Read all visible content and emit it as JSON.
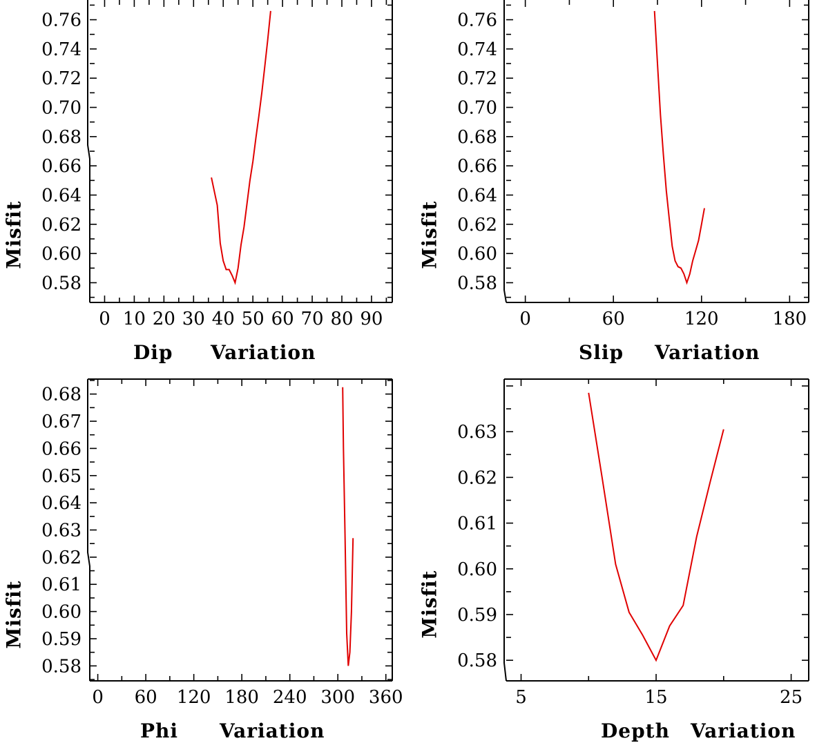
{
  "chart_data": [
    {
      "type": "line",
      "title": "",
      "xlabel_parts": [
        "Dip",
        "Variation"
      ],
      "ylabel": "Misfit",
      "xlim": [
        -5,
        97
      ],
      "ylim": [
        0.5665,
        0.7735
      ],
      "xticks": [
        0,
        10,
        20,
        30,
        40,
        50,
        60,
        70,
        80,
        90
      ],
      "xtick_labels": [
        "0",
        "10",
        "20",
        "30",
        "40",
        "50",
        "60",
        "70",
        "80",
        "90"
      ],
      "yticks": [
        0.58,
        0.6,
        0.62,
        0.64,
        0.66,
        0.68,
        0.7,
        0.72,
        0.74,
        0.76
      ],
      "ytick_labels": [
        "0.58",
        "0.60",
        "0.62",
        "0.64",
        "0.66",
        "0.68",
        "0.70",
        "0.72",
        "0.74",
        "0.76"
      ],
      "series": [
        {
          "name": "misfit",
          "color": "#e00000",
          "x": [
            36,
            38,
            39,
            40,
            41,
            42,
            43,
            44,
            45,
            46,
            47,
            48,
            49,
            50,
            51,
            52,
            53,
            54,
            55,
            56
          ],
          "y": [
            0.652,
            0.633,
            0.607,
            0.595,
            0.589,
            0.589,
            0.585,
            0.58,
            0.59,
            0.606,
            0.618,
            0.634,
            0.65,
            0.663,
            0.679,
            0.694,
            0.71,
            0.728,
            0.746,
            0.766
          ]
        }
      ]
    },
    {
      "type": "line",
      "title": "",
      "xlabel_parts": [
        "Slip",
        "Variation"
      ],
      "ylabel": "Misfit",
      "xlim": [
        -13,
        193
      ],
      "ylim": [
        0.5665,
        0.7735
      ],
      "xticks": [
        0,
        60,
        120,
        180
      ],
      "xtick_labels": [
        "0",
        "60",
        "120",
        "180"
      ],
      "yticks": [
        0.58,
        0.6,
        0.62,
        0.64,
        0.66,
        0.68,
        0.7,
        0.72,
        0.74,
        0.76
      ],
      "ytick_labels": [
        "0.58",
        "0.60",
        "0.62",
        "0.64",
        "0.66",
        "0.68",
        "0.70",
        "0.72",
        "0.74",
        "0.76"
      ],
      "series": [
        {
          "name": "misfit",
          "color": "#e00000",
          "x": [
            88,
            90,
            92,
            94,
            96,
            98,
            100,
            102,
            104,
            106,
            108,
            110,
            112,
            114,
            116,
            118,
            120,
            122
          ],
          "y": [
            0.766,
            0.73,
            0.695,
            0.668,
            0.643,
            0.624,
            0.605,
            0.595,
            0.591,
            0.59,
            0.586,
            0.58,
            0.586,
            0.595,
            0.602,
            0.609,
            0.62,
            0.631
          ]
        }
      ]
    },
    {
      "type": "line",
      "title": "",
      "xlabel_parts": [
        "Phi",
        "Variation"
      ],
      "ylabel": "Misfit",
      "xlim": [
        -10,
        368
      ],
      "ylim": [
        0.5745,
        0.6855
      ],
      "xticks": [
        0,
        60,
        120,
        180,
        240,
        300,
        360
      ],
      "xtick_labels": [
        "0",
        "60",
        "120",
        "180",
        "240",
        "300",
        "360"
      ],
      "yticks": [
        0.58,
        0.59,
        0.6,
        0.61,
        0.62,
        0.63,
        0.64,
        0.65,
        0.66,
        0.67,
        0.68
      ],
      "ytick_labels": [
        "0.58",
        "0.59",
        "0.60",
        "0.61",
        "0.62",
        "0.63",
        "0.64",
        "0.65",
        "0.66",
        "0.67",
        "0.68"
      ],
      "series": [
        {
          "name": "misfit",
          "color": "#e00000",
          "x": [
            306,
            307,
            309,
            311,
            313,
            315,
            317,
            319
          ],
          "y": [
            0.6825,
            0.66,
            0.628,
            0.592,
            0.58,
            0.585,
            0.6,
            0.627
          ]
        }
      ]
    },
    {
      "type": "line",
      "title": "",
      "xlabel_parts": [
        "Depth",
        "Variation"
      ],
      "ylabel": "Misfit",
      "xlim": [
        3.9,
        26.3
      ],
      "ylim": [
        0.5755,
        0.6415
      ],
      "xticks": [
        5,
        15,
        25
      ],
      "xtick_labels": [
        "5",
        "15",
        "25"
      ],
      "yticks": [
        0.58,
        0.59,
        0.6,
        0.61,
        0.62,
        0.63
      ],
      "ytick_labels": [
        "0.58",
        "0.59",
        "0.60",
        "0.61",
        "0.62",
        "0.63"
      ],
      "series": [
        {
          "name": "misfit",
          "color": "#e00000",
          "x": [
            10,
            11,
            12,
            13,
            14,
            15,
            16,
            17,
            18,
            19,
            20
          ],
          "y": [
            0.6385,
            0.62,
            0.601,
            0.5905,
            0.5855,
            0.58,
            0.5875,
            0.592,
            0.607,
            0.619,
            0.6305
          ]
        }
      ]
    }
  ]
}
